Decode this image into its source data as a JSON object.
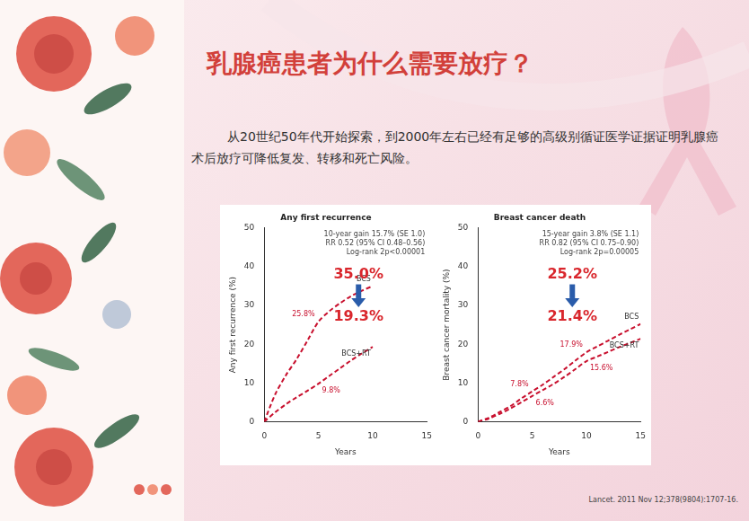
{
  "slide": {
    "title": "乳腺癌患者为什么需要放疗？",
    "text": "从20世纪50年代开始探索，到2000年左右已经有足够的高级别循证医学证据证明乳腺癌术后放疗可降低复发、转移和死亡风险。",
    "source": "Lancet. 2011 Nov 12;378(9804):1707-16."
  },
  "chart_data": [
    {
      "type": "line",
      "title": "Any first recurrence",
      "x_label": "Years",
      "y_label": "Any first recurrence (%)",
      "x": [
        0,
        1,
        2,
        3,
        4,
        5,
        6,
        7,
        8,
        9,
        10
      ],
      "series": [
        {
          "name": "BCS",
          "color": "#c8102e",
          "line_style": "dashed",
          "values": [
            0,
            7,
            12,
            16.2,
            21,
            25.8,
            28.5,
            30.6,
            32.4,
            33.8,
            35.0
          ],
          "value_labels": [
            null,
            null,
            null,
            null,
            null,
            "25.8%",
            null,
            null,
            null,
            null,
            null
          ]
        },
        {
          "name": "BCS+RT",
          "color": "#c8102e",
          "line_style": "dashed",
          "values": [
            0,
            2.4,
            4.5,
            6.3,
            8,
            9.8,
            11.8,
            13.8,
            15.8,
            17.6,
            19.3
          ],
          "value_labels": [
            null,
            null,
            null,
            null,
            null,
            "9.8%",
            null,
            null,
            null,
            null,
            null
          ]
        }
      ],
      "annotations": [
        "10-year gain 15.7% (SE 1.0)",
        "RR 0.52 (95% CI 0.48–0.56)",
        "Log-rank 2p<0.00001"
      ],
      "callouts": [
        "35.0%",
        "19.3%"
      ],
      "xlim": [
        0,
        15
      ],
      "xticks": [
        0,
        5,
        10,
        15
      ],
      "ylim": [
        0,
        50
      ],
      "yticks": [
        0,
        10,
        20,
        30,
        40,
        50
      ],
      "grid": false
    },
    {
      "type": "line",
      "title": "Breast cancer death",
      "x_label": "Years",
      "y_label": "Breast cancer mortality (%)",
      "x": [
        0,
        1,
        2,
        3,
        4,
        5,
        6,
        7,
        8,
        9,
        10,
        11,
        12,
        13,
        14,
        15
      ],
      "series": [
        {
          "name": "BCS",
          "color": "#c8102e",
          "line_style": "dashed",
          "values": [
            0,
            1,
            2.5,
            4,
            6,
            7.8,
            9.6,
            11.6,
            13.6,
            15.8,
            17.9,
            19.4,
            20.9,
            22.4,
            23.8,
            25.2
          ],
          "value_labels": [
            null,
            null,
            null,
            null,
            null,
            "7.8%",
            null,
            null,
            null,
            null,
            "17.9%",
            null,
            null,
            null,
            null,
            null
          ]
        },
        {
          "name": "BCS+RT",
          "color": "#c8102e",
          "line_style": "dashed",
          "values": [
            0,
            0.8,
            2,
            3.4,
            5,
            6.6,
            8.2,
            9.8,
            11.6,
            13.6,
            15.6,
            16.8,
            18,
            19.2,
            20.3,
            21.4
          ],
          "value_labels": [
            null,
            null,
            null,
            null,
            null,
            "6.6%",
            null,
            null,
            null,
            null,
            "15.6%",
            null,
            null,
            null,
            null,
            null
          ]
        }
      ],
      "annotations": [
        "15-year gain 3.8% (SE 1.1)",
        "RR 0.82 (95% CI 0.75–0.90)",
        "Log-rank 2p=0.00005"
      ],
      "callouts": [
        "25.2%",
        "21.4%"
      ],
      "xlim": [
        0,
        15
      ],
      "xticks": [
        0,
        5,
        10,
        15
      ],
      "ylim": [
        0,
        50
      ],
      "yticks": [
        0,
        10,
        20,
        30,
        40,
        50
      ],
      "grid": false
    }
  ]
}
